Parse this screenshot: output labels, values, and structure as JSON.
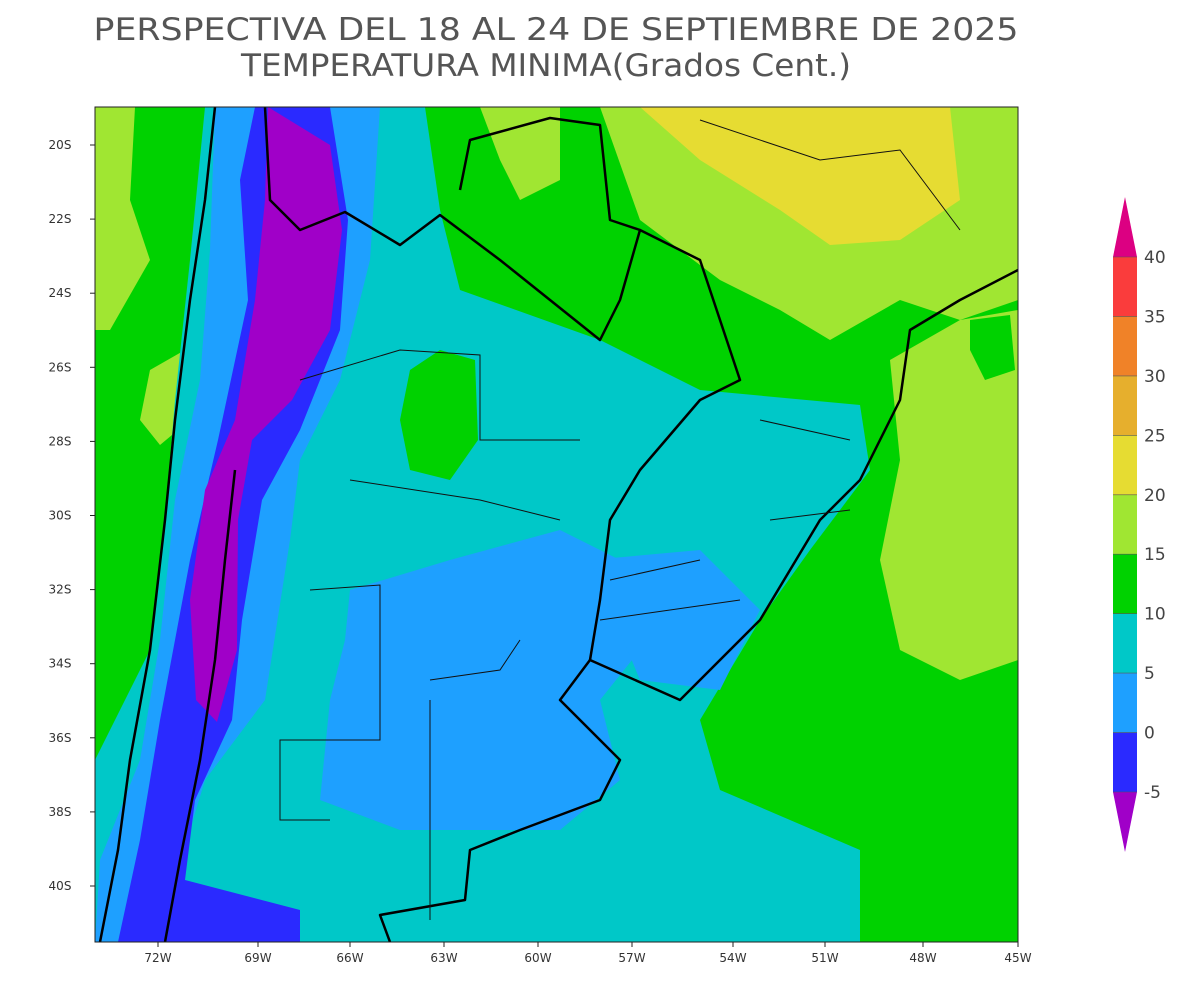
{
  "title": "PERSPECTIVA DEL 18 AL 24 DE SEPTIEMBRE DE 2025",
  "subtitle": "TEMPERATURA MINIMA(Grados Cent.)",
  "lat_labels": [
    "20S",
    "22S",
    "24S",
    "26S",
    "28S",
    "30S",
    "32S",
    "34S",
    "36S",
    "38S",
    "40S"
  ],
  "lon_labels": [
    "72W",
    "69W",
    "66W",
    "63W",
    "60W",
    "57W",
    "54W",
    "51W",
    "48W",
    "45W"
  ],
  "colorbar": {
    "levels": [
      -5,
      0,
      5,
      10,
      15,
      20,
      25,
      30,
      35,
      40
    ],
    "colors": [
      "#a000c8",
      "#2a2aff",
      "#1ea0ff",
      "#00c8c8",
      "#00d200",
      "#a0e632",
      "#e6dc32",
      "#e6af2d",
      "#f08228",
      "#fa3c3c",
      "#dc0082"
    ]
  }
}
